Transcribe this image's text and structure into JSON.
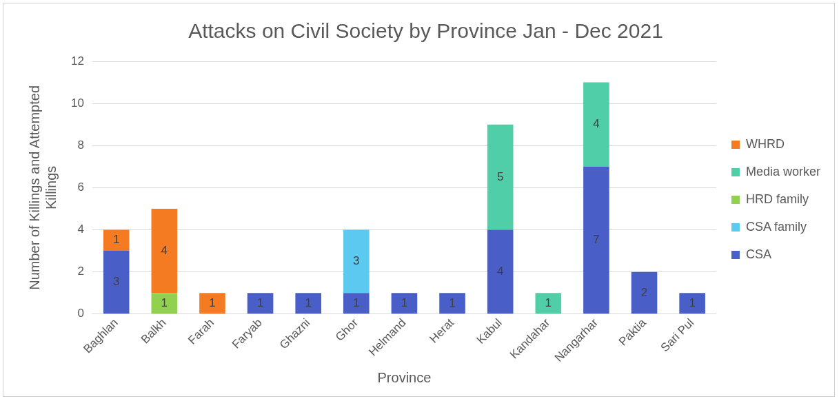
{
  "chart_data": {
    "type": "bar",
    "title": "Attacks on Civil Society by Province Jan - Dec 2021",
    "xlabel": "Province",
    "ylabel": "Number of Killings and Attempted Killings",
    "categories": [
      "Baghlan",
      "Balkh",
      "Farah",
      "Faryab",
      "Ghazni",
      "Ghor",
      "Helmand",
      "Herat",
      "Kabul",
      "Kandahar",
      "Nangarhar",
      "Paktia",
      "Sari Pul"
    ],
    "series": [
      {
        "name": "CSA",
        "color": "#4a5ec8",
        "values": [
          3,
          null,
          null,
          1,
          1,
          1,
          1,
          1,
          4,
          null,
          7,
          2,
          1
        ]
      },
      {
        "name": "CSA family",
        "color": "#5bc9f0",
        "values": [
          null,
          null,
          null,
          null,
          null,
          3,
          null,
          null,
          null,
          null,
          null,
          null,
          null
        ]
      },
      {
        "name": "HRD family",
        "color": "#92d04f",
        "values": [
          null,
          1,
          null,
          null,
          null,
          null,
          null,
          null,
          null,
          null,
          null,
          null,
          null
        ]
      },
      {
        "name": "Media worker",
        "color": "#4fcea8",
        "values": [
          null,
          null,
          null,
          null,
          null,
          null,
          null,
          null,
          5,
          1,
          4,
          null,
          null
        ]
      },
      {
        "name": "WHRD",
        "color": "#f57b22",
        "values": [
          1,
          4,
          1,
          null,
          null,
          null,
          null,
          null,
          null,
          null,
          null,
          null,
          null
        ]
      }
    ],
    "stacked": true,
    "ylim": [
      0,
      12
    ],
    "yticks": [
      0,
      2,
      4,
      6,
      8,
      10,
      12
    ],
    "grid": "y",
    "legend": "right",
    "data_labels": true
  }
}
